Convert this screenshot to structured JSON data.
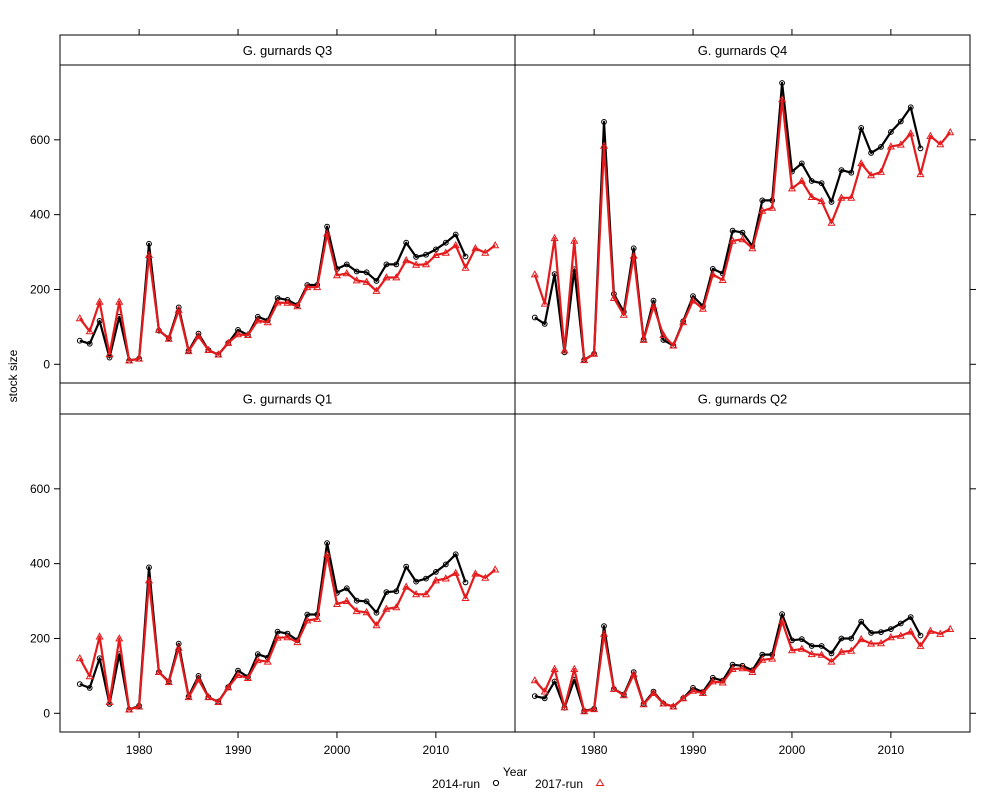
{
  "chart_data": {
    "type": "line",
    "ylabel": "stock size",
    "xlabel": "Year",
    "xlim": [
      1972,
      2018
    ],
    "ylim": [
      -50,
      800
    ],
    "x_ticks": [
      1980,
      1990,
      2000,
      2010
    ],
    "y_ticks": [
      0,
      200,
      400,
      600
    ],
    "legend_position": "bottom",
    "series_styles": [
      {
        "name": "2014-run",
        "color": "#000000",
        "marker": "circle"
      },
      {
        "name": "2017-run",
        "color": "#e41a1c",
        "marker": "triangle"
      }
    ],
    "panels": [
      {
        "title": "G. gurnards Q3",
        "position": "top-left",
        "x_start": 1974,
        "series": [
          {
            "name": "2014-run",
            "values": [
              63,
              55,
              116,
              18,
              127,
              10,
              15,
              322,
              90,
              70,
              152,
              36,
              82,
              38,
              26,
              57,
              92,
              78,
              127,
              117,
              177,
              172,
              158,
              212,
              212,
              368,
              255,
              267,
              248,
              246,
              223,
              267,
              267,
              325,
              287,
              293,
              307,
              325,
              347,
              288
            ]
          },
          {
            "name": "2017-run",
            "values": [
              123,
              88,
              167,
              27,
              167,
              10,
              15,
              292,
              92,
              68,
              145,
              35,
              75,
              38,
              26,
              57,
              80,
              78,
              117,
              112,
              165,
              164,
              155,
              206,
              206,
              349,
              238,
              243,
              224,
              220,
              196,
              232,
              232,
              278,
              266,
              267,
              292,
              298,
              318,
              258,
              310,
              298,
              318
            ]
          }
        ]
      },
      {
        "title": "G. gurnards Q4",
        "position": "top-right",
        "x_start": 1974,
        "series": [
          {
            "name": "2014-run",
            "values": [
              125,
              108,
              241,
              32,
              254,
              12,
              28,
              648,
              188,
              140,
              310,
              66,
              170,
              65,
              50,
              115,
              182,
              155,
              255,
              243,
              357,
              352,
              316,
              438,
              438,
              752,
              515,
              537,
              490,
              484,
              434,
              519,
              512,
              632,
              565,
              581,
              621,
              649,
              687,
              577
            ]
          },
          {
            "name": "2017-run",
            "values": [
              240,
              162,
              337,
              37,
              330,
              11,
              28,
              584,
              177,
              132,
              290,
              65,
              155,
              78,
              50,
              112,
              170,
              148,
              240,
              225,
              330,
              334,
              310,
              410,
              418,
              708,
              470,
              490,
              447,
              436,
              378,
              445,
              445,
              537,
              505,
              514,
              582,
              587,
              617,
              508,
              610,
              588,
              620
            ]
          }
        ]
      },
      {
        "title": "G. gurnards Q1",
        "position": "bottom-left",
        "x_start": 1974,
        "series": [
          {
            "name": "2014-run",
            "values": [
              78,
              68,
              147,
              25,
              158,
              10,
              20,
              390,
              110,
              85,
              186,
              45,
              100,
              43,
              31,
              70,
              114,
              97,
              158,
              149,
              218,
              213,
              195,
              264,
              264,
              455,
              322,
              334,
              301,
              299,
              269,
              324,
              326,
              392,
              352,
              360,
              378,
              398,
              425,
              350
            ]
          },
          {
            "name": "2017-run",
            "values": [
              147,
              99,
              205,
              30,
              200,
              10,
              18,
              355,
              110,
              83,
              175,
              43,
              90,
              43,
              30,
              69,
              102,
              94,
              142,
              138,
              202,
              203,
              190,
              248,
              252,
              424,
              292,
              300,
              273,
              270,
              235,
              279,
              283,
              338,
              318,
              318,
              355,
              360,
              375,
              308,
              373,
              362,
              384
            ]
          }
        ]
      },
      {
        "title": "G. gurnards Q2",
        "position": "bottom-right",
        "x_start": 1974,
        "series": [
          {
            "name": "2014-run",
            "values": [
              46,
              40,
              85,
              15,
              90,
              6,
              12,
              233,
              65,
              50,
              110,
              25,
              58,
              26,
              18,
              40,
              68,
              57,
              95,
              87,
              130,
              127,
              115,
              157,
              157,
              265,
              195,
              198,
              180,
              180,
              160,
              200,
              200,
              245,
              215,
              217,
              225,
              240,
              257,
              208
            ]
          },
          {
            "name": "2017-run",
            "values": [
              88,
              58,
              118,
              16,
              118,
              5,
              11,
              212,
              65,
              48,
              104,
              24,
              54,
              26,
              18,
              40,
              60,
              54,
              85,
              82,
              118,
              120,
              110,
              143,
              146,
              246,
              168,
              172,
              158,
              156,
              138,
              164,
              167,
              198,
              186,
              187,
              203,
              207,
              218,
              180,
              220,
              212,
              225
            ]
          }
        ]
      }
    ]
  }
}
